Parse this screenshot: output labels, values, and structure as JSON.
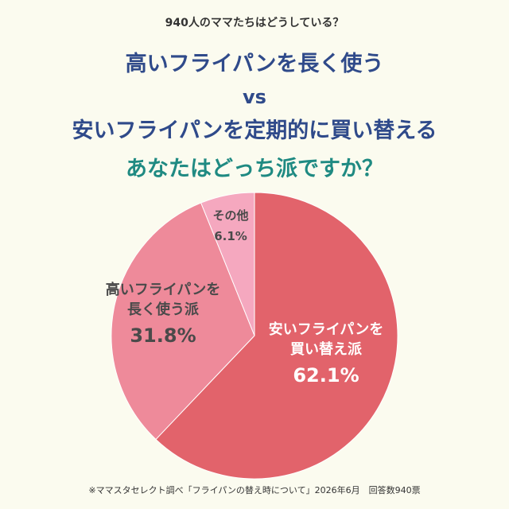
{
  "header": {
    "subtitle": "940人のママたちはどうしている？",
    "line1": "高いフライパンを長く使う",
    "vs": "vs",
    "line2": "安いフライパンを定期的に買い替える",
    "question": "あなたはどっち派ですか？"
  },
  "chart_data": {
    "type": "pie",
    "slices": [
      {
        "label_lines": [
          "安いフライパンを",
          "買い替え派"
        ],
        "value": 62.1,
        "value_text": "62.1%",
        "color": "#e2636b"
      },
      {
        "label_lines": [
          "高いフライパンを",
          "長く使う派"
        ],
        "value": 31.8,
        "value_text": "31.8%",
        "color": "#ee8a9a"
      },
      {
        "label_lines": [
          "その他"
        ],
        "value": 6.1,
        "value_text": "6.1%",
        "color": "#f5a8bf"
      }
    ]
  },
  "footer": "※ママスタセレクト調べ「フライパンの替え時について」2026年6月　回答数940票"
}
